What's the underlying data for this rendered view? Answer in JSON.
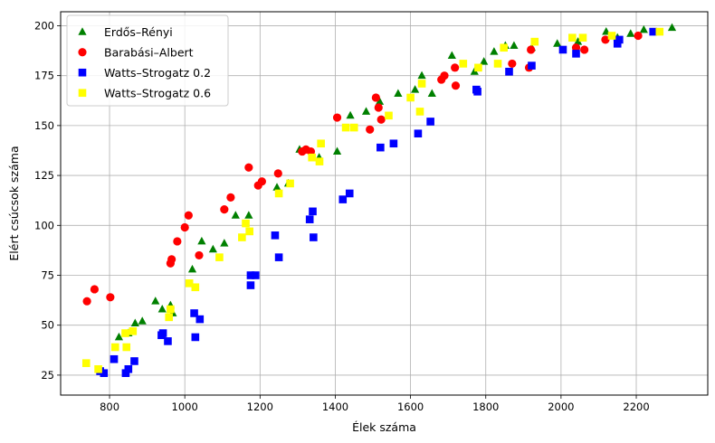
{
  "chart_data": {
    "type": "scatter",
    "xlabel": "Élek száma",
    "ylabel": "Elért csúcsok száma",
    "xlim": [
      670,
      2390
    ],
    "ylim": [
      15,
      207
    ],
    "xticks": [
      800,
      1000,
      1200,
      1400,
      1600,
      1800,
      2000,
      2200
    ],
    "yticks": [
      25,
      50,
      75,
      100,
      125,
      150,
      175,
      200
    ],
    "grid": true,
    "legend_position": "top-left",
    "series": [
      {
        "name": "Erdős–Rényi",
        "color": "#008000",
        "marker": "triangle",
        "points": [
          [
            825,
            44
          ],
          [
            850,
            46
          ],
          [
            868,
            51
          ],
          [
            887,
            52
          ],
          [
            922,
            62
          ],
          [
            940,
            58
          ],
          [
            962,
            60
          ],
          [
            968,
            56
          ],
          [
            1020,
            78
          ],
          [
            1045,
            92
          ],
          [
            1075,
            88
          ],
          [
            1105,
            91
          ],
          [
            1135,
            105
          ],
          [
            1170,
            105
          ],
          [
            1245,
            119
          ],
          [
            1275,
            121
          ],
          [
            1305,
            138
          ],
          [
            1357,
            134
          ],
          [
            1405,
            137
          ],
          [
            1440,
            155
          ],
          [
            1482,
            157
          ],
          [
            1518,
            162
          ],
          [
            1567,
            166
          ],
          [
            1612,
            168
          ],
          [
            1630,
            175
          ],
          [
            1657,
            166
          ],
          [
            1710,
            185
          ],
          [
            1770,
            177
          ],
          [
            1795,
            182
          ],
          [
            1822,
            187
          ],
          [
            1852,
            190
          ],
          [
            1875,
            190
          ],
          [
            1922,
            189
          ],
          [
            1990,
            191
          ],
          [
            2045,
            192
          ],
          [
            2120,
            197
          ],
          [
            2150,
            194
          ],
          [
            2185,
            196
          ],
          [
            2220,
            198
          ],
          [
            2295,
            199
          ]
        ]
      },
      {
        "name": "Barabási–Albert",
        "color": "#ff0000",
        "marker": "circle",
        "points": [
          [
            740,
            62
          ],
          [
            760,
            68
          ],
          [
            802,
            64
          ],
          [
            962,
            81
          ],
          [
            965,
            83
          ],
          [
            980,
            92
          ],
          [
            1000,
            99
          ],
          [
            1010,
            105
          ],
          [
            1038,
            85
          ],
          [
            1105,
            108
          ],
          [
            1122,
            114
          ],
          [
            1170,
            129
          ],
          [
            1195,
            120
          ],
          [
            1205,
            122
          ],
          [
            1248,
            126
          ],
          [
            1312,
            137
          ],
          [
            1322,
            138
          ],
          [
            1335,
            137
          ],
          [
            1405,
            154
          ],
          [
            1492,
            148
          ],
          [
            1508,
            164
          ],
          [
            1515,
            159
          ],
          [
            1522,
            153
          ],
          [
            1682,
            173
          ],
          [
            1690,
            175
          ],
          [
            1718,
            179
          ],
          [
            1720,
            170
          ],
          [
            1870,
            181
          ],
          [
            1915,
            179
          ],
          [
            1920,
            188
          ],
          [
            2040,
            189
          ],
          [
            2062,
            188
          ],
          [
            2118,
            193
          ],
          [
            2205,
            195
          ]
        ]
      },
      {
        "name": "Watts–Strogatz 0.2",
        "color": "#0000ff",
        "marker": "square",
        "points": [
          [
            775,
            27
          ],
          [
            785,
            26
          ],
          [
            812,
            33
          ],
          [
            843,
            26
          ],
          [
            850,
            28
          ],
          [
            866,
            32
          ],
          [
            938,
            45
          ],
          [
            942,
            46
          ],
          [
            955,
            42
          ],
          [
            1025,
            56
          ],
          [
            1028,
            44
          ],
          [
            1040,
            53
          ],
          [
            1175,
            75
          ],
          [
            1175,
            70
          ],
          [
            1188,
            75
          ],
          [
            1240,
            95
          ],
          [
            1250,
            84
          ],
          [
            1332,
            103
          ],
          [
            1340,
            107
          ],
          [
            1342,
            94
          ],
          [
            1420,
            113
          ],
          [
            1438,
            116
          ],
          [
            1520,
            139
          ],
          [
            1555,
            141
          ],
          [
            1620,
            146
          ],
          [
            1653,
            152
          ],
          [
            1775,
            168
          ],
          [
            1778,
            167
          ],
          [
            1862,
            177
          ],
          [
            1922,
            180
          ],
          [
            2005,
            188
          ],
          [
            2040,
            186
          ],
          [
            2150,
            191
          ],
          [
            2155,
            193
          ],
          [
            2245,
            197
          ]
        ]
      },
      {
        "name": "Watts–Strogatz 0.6",
        "color": "#ffff00",
        "marker": "square",
        "points": [
          [
            738,
            31
          ],
          [
            770,
            28
          ],
          [
            815,
            39
          ],
          [
            842,
            46
          ],
          [
            845,
            39
          ],
          [
            862,
            47
          ],
          [
            958,
            54
          ],
          [
            962,
            58
          ],
          [
            1012,
            71
          ],
          [
            1028,
            69
          ],
          [
            1092,
            84
          ],
          [
            1152,
            94
          ],
          [
            1162,
            101
          ],
          [
            1172,
            97
          ],
          [
            1250,
            116
          ],
          [
            1280,
            121
          ],
          [
            1338,
            134
          ],
          [
            1358,
            132
          ],
          [
            1362,
            141
          ],
          [
            1428,
            149
          ],
          [
            1450,
            149
          ],
          [
            1542,
            155
          ],
          [
            1600,
            164
          ],
          [
            1625,
            157
          ],
          [
            1630,
            171
          ],
          [
            1740,
            181
          ],
          [
            1780,
            179
          ],
          [
            1832,
            181
          ],
          [
            1848,
            189
          ],
          [
            1930,
            192
          ],
          [
            2030,
            194
          ],
          [
            2058,
            194
          ],
          [
            2135,
            195
          ],
          [
            2262,
            197
          ]
        ]
      }
    ]
  }
}
